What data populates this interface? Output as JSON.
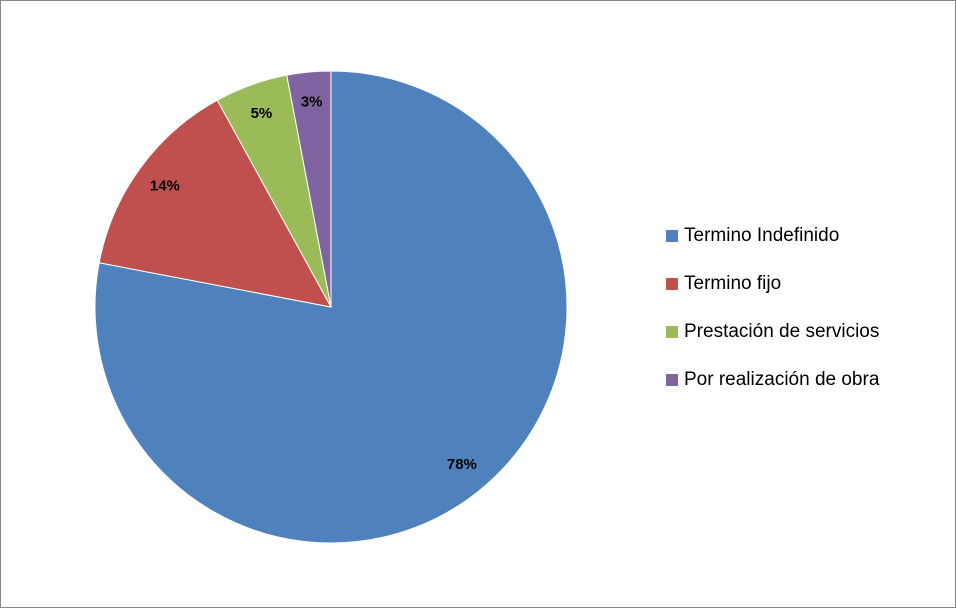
{
  "chart_data": {
    "type": "pie",
    "categories": [
      "Termino Indefinido",
      "Termino fijo",
      "Prestación de servicios",
      "Por realización de obra"
    ],
    "values": [
      78,
      14,
      5,
      3
    ],
    "value_labels": [
      "78%",
      "14%",
      "5%",
      "3%"
    ],
    "colors": [
      "#4f81bd",
      "#c0504d",
      "#9bbb59",
      "#8064a2"
    ],
    "legend": "right"
  }
}
